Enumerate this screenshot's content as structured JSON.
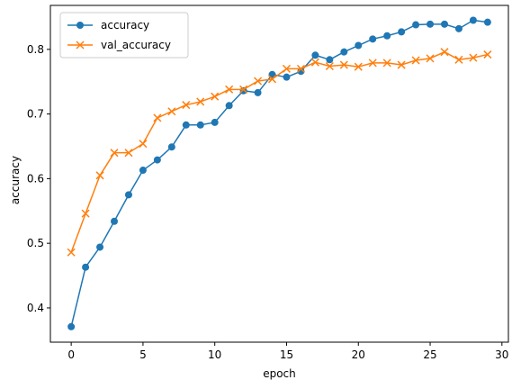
{
  "chart_data": {
    "type": "line",
    "title": "",
    "xlabel": "epoch",
    "ylabel": "accuracy",
    "xlim": [
      -1.45,
      30.45
    ],
    "ylim": [
      0.347,
      0.868
    ],
    "xticks": [
      0,
      5,
      10,
      15,
      20,
      25,
      30
    ],
    "yticks": [
      0.4,
      0.5,
      0.6,
      0.7,
      0.8
    ],
    "grid": false,
    "legend_position": "top-left",
    "x": [
      0,
      1,
      2,
      3,
      4,
      5,
      6,
      7,
      8,
      9,
      10,
      11,
      12,
      13,
      14,
      15,
      16,
      17,
      18,
      19,
      20,
      21,
      22,
      23,
      24,
      25,
      26,
      27,
      28,
      29
    ],
    "series": [
      {
        "name": "accuracy",
        "color": "#1f77b4",
        "marker": "circle",
        "values": [
          0.371,
          0.463,
          0.494,
          0.534,
          0.575,
          0.613,
          0.629,
          0.649,
          0.683,
          0.683,
          0.687,
          0.713,
          0.736,
          0.733,
          0.761,
          0.757,
          0.766,
          0.791,
          0.784,
          0.796,
          0.806,
          0.816,
          0.821,
          0.827,
          0.838,
          0.839,
          0.839,
          0.832,
          0.845,
          0.842
        ]
      },
      {
        "name": "val_accuracy",
        "color": "#ff7f0e",
        "marker": "x",
        "values": [
          0.486,
          0.546,
          0.605,
          0.64,
          0.64,
          0.654,
          0.694,
          0.704,
          0.714,
          0.719,
          0.727,
          0.738,
          0.738,
          0.751,
          0.754,
          0.77,
          0.77,
          0.78,
          0.774,
          0.776,
          0.773,
          0.779,
          0.779,
          0.776,
          0.783,
          0.786,
          0.796,
          0.784,
          0.787,
          0.792
        ]
      }
    ]
  }
}
